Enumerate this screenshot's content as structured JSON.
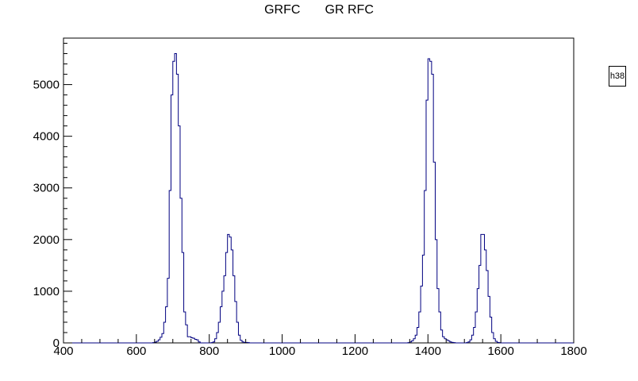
{
  "chart_data": {
    "type": "histogram",
    "title": "GRFC       GR RFC",
    "histogram_name": "h38",
    "xlabel": "",
    "ylabel": "",
    "xlim": [
      400,
      1800
    ],
    "ylim": [
      0,
      5900
    ],
    "x_ticks": [
      400,
      600,
      800,
      1000,
      1200,
      1400,
      1600,
      1800
    ],
    "y_ticks": [
      0,
      1000,
      2000,
      3000,
      4000,
      5000
    ],
    "line_color": "#000080",
    "bin_width": 5,
    "series": [
      {
        "values": [
          [
            645,
            5
          ],
          [
            650,
            15
          ],
          [
            655,
            30
          ],
          [
            660,
            60
          ],
          [
            665,
            110
          ],
          [
            670,
            180
          ],
          [
            675,
            400
          ],
          [
            680,
            700
          ],
          [
            685,
            1250
          ],
          [
            690,
            2950
          ],
          [
            695,
            4800
          ],
          [
            700,
            5450
          ],
          [
            705,
            5600
          ],
          [
            710,
            5200
          ],
          [
            715,
            4200
          ],
          [
            720,
            2800
          ],
          [
            725,
            1750
          ],
          [
            730,
            600
          ],
          [
            735,
            350
          ],
          [
            740,
            120
          ],
          [
            745,
            120
          ],
          [
            750,
            100
          ],
          [
            755,
            90
          ],
          [
            760,
            70
          ],
          [
            765,
            60
          ],
          [
            770,
            20
          ],
          [
            775,
            0
          ],
          [
            805,
            5
          ],
          [
            810,
            20
          ],
          [
            815,
            80
          ],
          [
            820,
            200
          ],
          [
            825,
            400
          ],
          [
            830,
            700
          ],
          [
            835,
            1000
          ],
          [
            840,
            1300
          ],
          [
            845,
            1750
          ],
          [
            850,
            2100
          ],
          [
            855,
            2050
          ],
          [
            860,
            1800
          ],
          [
            865,
            1300
          ],
          [
            870,
            800
          ],
          [
            875,
            400
          ],
          [
            880,
            150
          ],
          [
            885,
            50
          ],
          [
            890,
            20
          ],
          [
            895,
            10
          ],
          [
            900,
            10
          ],
          [
            905,
            5
          ],
          [
            910,
            0
          ],
          [
            1345,
            5
          ],
          [
            1350,
            20
          ],
          [
            1355,
            40
          ],
          [
            1360,
            80
          ],
          [
            1365,
            150
          ],
          [
            1370,
            300
          ],
          [
            1375,
            600
          ],
          [
            1380,
            1100
          ],
          [
            1385,
            1700
          ],
          [
            1390,
            2950
          ],
          [
            1395,
            4700
          ],
          [
            1400,
            5500
          ],
          [
            1405,
            5450
          ],
          [
            1410,
            5200
          ],
          [
            1415,
            3500
          ],
          [
            1420,
            2000
          ],
          [
            1425,
            1050
          ],
          [
            1430,
            600
          ],
          [
            1435,
            250
          ],
          [
            1440,
            120
          ],
          [
            1445,
            80
          ],
          [
            1450,
            60
          ],
          [
            1455,
            40
          ],
          [
            1460,
            20
          ],
          [
            1465,
            10
          ],
          [
            1470,
            5
          ],
          [
            1475,
            0
          ],
          [
            1505,
            5
          ],
          [
            1510,
            20
          ],
          [
            1515,
            60
          ],
          [
            1520,
            150
          ],
          [
            1525,
            300
          ],
          [
            1530,
            600
          ],
          [
            1535,
            1050
          ],
          [
            1540,
            1500
          ],
          [
            1545,
            2100
          ],
          [
            1550,
            2100
          ],
          [
            1555,
            1800
          ],
          [
            1560,
            1400
          ],
          [
            1565,
            900
          ],
          [
            1570,
            500
          ],
          [
            1575,
            200
          ],
          [
            1580,
            80
          ],
          [
            1585,
            30
          ],
          [
            1590,
            10
          ],
          [
            1595,
            5
          ],
          [
            1600,
            0
          ]
        ]
      }
    ]
  }
}
